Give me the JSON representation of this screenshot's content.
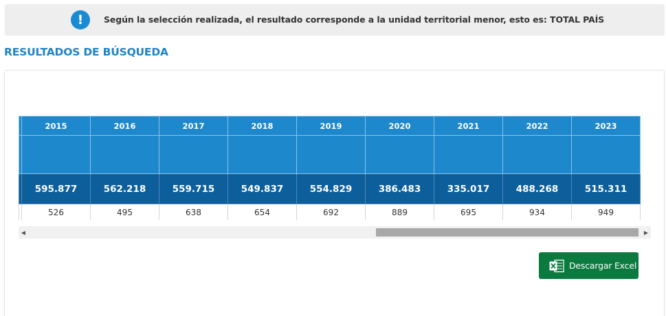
{
  "notice": {
    "icon": "exclamation-icon",
    "text": "Según la selección realizada, el resultado corresponde a la unidad territorial menor, esto es: TOTAL PAÍS"
  },
  "section_title": "RESULTADOS DE BÚSQUEDA",
  "table": {
    "years": [
      "2015",
      "2016",
      "2017",
      "2018",
      "2019",
      "2020",
      "2021",
      "2022",
      "2023"
    ],
    "totals": [
      "595.877",
      "562.218",
      "559.715",
      "549.837",
      "554.829",
      "386.483",
      "335.017",
      "488.268",
      "515.311"
    ],
    "counts": [
      "526",
      "495",
      "638",
      "654",
      "692",
      "889",
      "695",
      "934",
      "949"
    ]
  },
  "scrollbar": {
    "left_arrow": "◀",
    "right_arrow": "▶"
  },
  "download_button": {
    "label": "Descargar Excel",
    "icon": "excel-icon"
  },
  "colors": {
    "accent": "#1e88cc",
    "header_dark": "#0d5f9c",
    "title": "#1f83c6",
    "excel_green": "#0b7a3f"
  }
}
